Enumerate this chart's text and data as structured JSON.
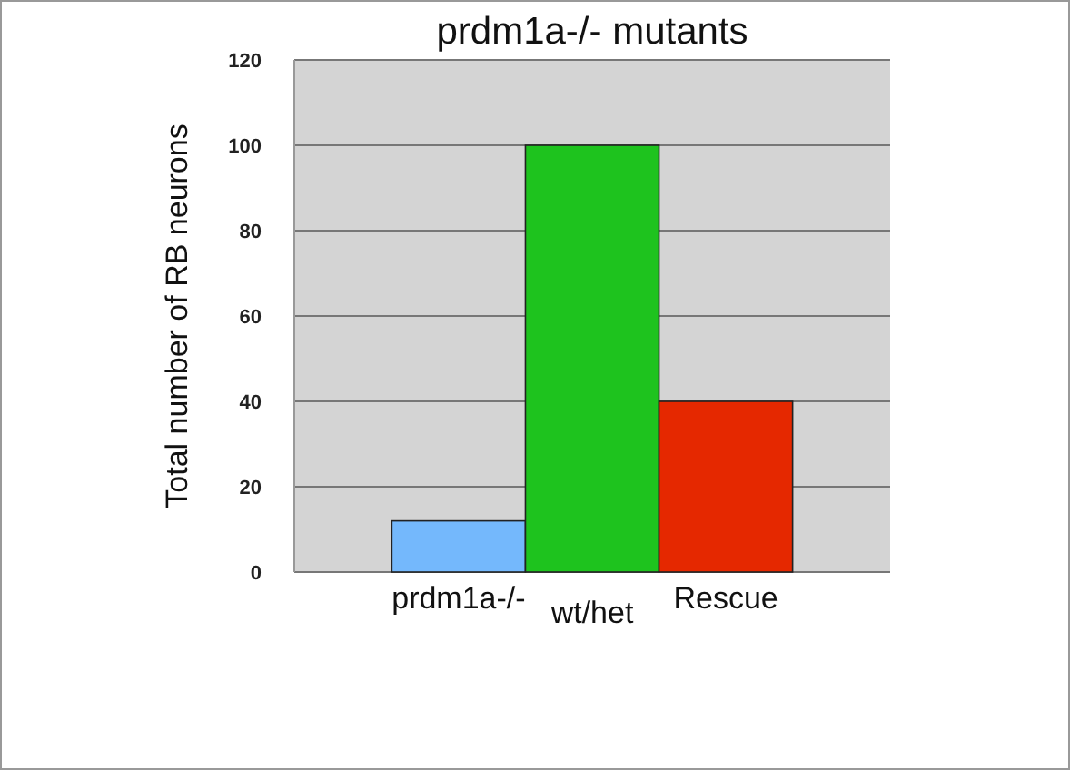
{
  "chart_data": {
    "type": "bar",
    "title": "prdm1a-/- mutants",
    "ylabel": "Total number of RB neurons",
    "categories": [
      "prdm1a-/-",
      "wt/het",
      "Rescue"
    ],
    "values": [
      12,
      100,
      40
    ],
    "colors": [
      "#74b8fc",
      "#1ec31e",
      "#e52800"
    ],
    "ylim": [
      0,
      120
    ],
    "yticks": [
      0,
      20,
      40,
      60,
      80,
      100,
      120
    ],
    "grid": "y"
  }
}
